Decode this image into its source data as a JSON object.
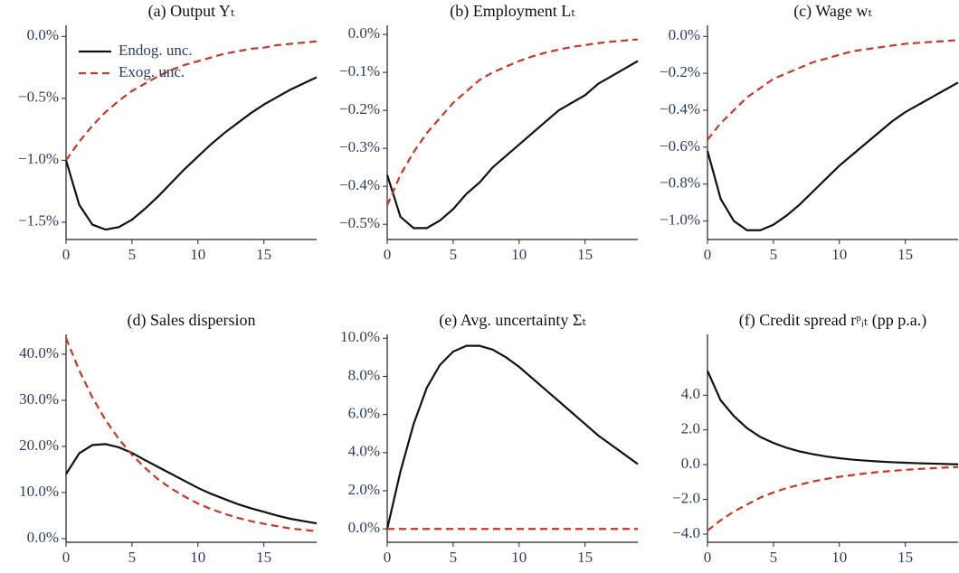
{
  "chart_data": [
    {
      "type": "line",
      "title": "(a) Output Yₜ",
      "legend": "upper left",
      "x": [
        0,
        1,
        2,
        3,
        4,
        5,
        6,
        7,
        8,
        9,
        10,
        11,
        12,
        13,
        14,
        15,
        16,
        17,
        18,
        19
      ],
      "xlim": [
        0,
        19
      ],
      "xticks": [
        0,
        5,
        10,
        15
      ],
      "ylim": [
        -1.64,
        0.09
      ],
      "yticks": [
        {
          "value": 0,
          "label": "0.0%"
        },
        {
          "value": -0.5,
          "label": "−0.5%"
        },
        {
          "value": -1.0,
          "label": "−1.0%"
        },
        {
          "value": -1.5,
          "label": "−1.5%"
        }
      ],
      "series": [
        {
          "name": "Endog. unc.",
          "color": "#111111",
          "dash": "solid",
          "values": [
            -1.0,
            -1.36,
            -1.52,
            -1.56,
            -1.54,
            -1.48,
            -1.39,
            -1.29,
            -1.18,
            -1.07,
            -0.97,
            -0.87,
            -0.78,
            -0.7,
            -0.62,
            -0.55,
            -0.49,
            -0.43,
            -0.38,
            -0.33
          ]
        },
        {
          "name": "Exog. unc.",
          "color": "#c0392b",
          "dash": "dashed",
          "values": [
            -1.0,
            -0.85,
            -0.72,
            -0.61,
            -0.52,
            -0.44,
            -0.38,
            -0.32,
            -0.27,
            -0.23,
            -0.2,
            -0.17,
            -0.14,
            -0.12,
            -0.1,
            -0.09,
            -0.07,
            -0.06,
            -0.05,
            -0.04
          ]
        }
      ]
    },
    {
      "type": "line",
      "title": "(b) Employment Lₜ",
      "x": [
        0,
        1,
        2,
        3,
        4,
        5,
        6,
        7,
        8,
        9,
        10,
        11,
        12,
        13,
        14,
        15,
        16,
        17,
        18,
        19
      ],
      "xlim": [
        0,
        19
      ],
      "xticks": [
        0,
        5,
        10,
        15
      ],
      "ylim": [
        -0.54,
        0.024
      ],
      "yticks": [
        {
          "value": 0,
          "label": "0.0%"
        },
        {
          "value": -0.1,
          "label": "−0.1%"
        },
        {
          "value": -0.2,
          "label": "−0.2%"
        },
        {
          "value": -0.3,
          "label": "−0.3%"
        },
        {
          "value": -0.4,
          "label": "−0.4%"
        },
        {
          "value": -0.5,
          "label": "−0.5%"
        }
      ],
      "series": [
        {
          "color": "#111111",
          "dash": "solid",
          "values": [
            -0.37,
            -0.48,
            -0.51,
            -0.51,
            -0.49,
            -0.46,
            -0.42,
            -0.39,
            -0.35,
            -0.32,
            -0.29,
            -0.26,
            -0.23,
            -0.2,
            -0.18,
            -0.16,
            -0.13,
            -0.11,
            -0.09,
            -0.07
          ]
        },
        {
          "color": "#c0392b",
          "dash": "dashed",
          "values": [
            -0.45,
            -0.37,
            -0.31,
            -0.26,
            -0.22,
            -0.18,
            -0.15,
            -0.12,
            -0.1,
            -0.085,
            -0.07,
            -0.058,
            -0.048,
            -0.04,
            -0.033,
            -0.028,
            -0.023,
            -0.019,
            -0.016,
            -0.013
          ]
        }
      ]
    },
    {
      "type": "line",
      "title": "(c) Wage wₜ",
      "x": [
        0,
        1,
        2,
        3,
        4,
        5,
        6,
        7,
        8,
        9,
        10,
        11,
        12,
        13,
        14,
        15,
        16,
        17,
        18,
        19
      ],
      "xlim": [
        0,
        19
      ],
      "xticks": [
        0,
        5,
        10,
        15
      ],
      "ylim": [
        -1.1,
        0.06
      ],
      "yticks": [
        {
          "value": 0,
          "label": "0.0%"
        },
        {
          "value": -0.2,
          "label": "−0.2%"
        },
        {
          "value": -0.4,
          "label": "−0.4%"
        },
        {
          "value": -0.6,
          "label": "−0.6%"
        },
        {
          "value": -0.8,
          "label": "−0.8%"
        },
        {
          "value": -1.0,
          "label": "−1.0%"
        }
      ],
      "series": [
        {
          "color": "#111111",
          "dash": "solid",
          "values": [
            -0.62,
            -0.88,
            -1.0,
            -1.05,
            -1.05,
            -1.02,
            -0.97,
            -0.91,
            -0.84,
            -0.77,
            -0.7,
            -0.64,
            -0.58,
            -0.52,
            -0.46,
            -0.41,
            -0.37,
            -0.33,
            -0.29,
            -0.25
          ]
        },
        {
          "color": "#c0392b",
          "dash": "dashed",
          "values": [
            -0.56,
            -0.47,
            -0.4,
            -0.33,
            -0.28,
            -0.23,
            -0.2,
            -0.17,
            -0.14,
            -0.12,
            -0.1,
            -0.08,
            -0.07,
            -0.06,
            -0.05,
            -0.04,
            -0.035,
            -0.03,
            -0.025,
            -0.02
          ]
        }
      ]
    },
    {
      "type": "line",
      "title": "(d) Sales dispersion",
      "x": [
        0,
        1,
        2,
        3,
        4,
        5,
        6,
        7,
        8,
        9,
        10,
        11,
        12,
        13,
        14,
        15,
        16,
        17,
        18,
        19
      ],
      "xlim": [
        0,
        19
      ],
      "xticks": [
        0,
        5,
        10,
        15
      ],
      "ylim": [
        -0.8,
        44.3
      ],
      "yticks": [
        {
          "value": 0,
          "label": "0.0%"
        },
        {
          "value": 10,
          "label": "10.0%"
        },
        {
          "value": 20,
          "label": "20.0%"
        },
        {
          "value": 30,
          "label": "30.0%"
        },
        {
          "value": 40,
          "label": "40.0%"
        }
      ],
      "series": [
        {
          "color": "#111111",
          "dash": "solid",
          "values": [
            14,
            18.5,
            20.3,
            20.5,
            19.8,
            18.6,
            17.0,
            15.5,
            14.0,
            12.5,
            11.0,
            9.7,
            8.6,
            7.5,
            6.6,
            5.8,
            5.0,
            4.3,
            3.8,
            3.3
          ]
        },
        {
          "color": "#c0392b",
          "dash": "dashed",
          "values": [
            43.5,
            36.5,
            30.6,
            25.7,
            21.6,
            18.2,
            15.3,
            12.8,
            10.8,
            9.1,
            7.6,
            6.4,
            5.4,
            4.5,
            3.8,
            3.2,
            2.7,
            2.2,
            1.9,
            1.6
          ]
        }
      ]
    },
    {
      "type": "line",
      "title": "(e) Avg. uncertainty Σₜ",
      "x": [
        0,
        1,
        2,
        3,
        4,
        5,
        6,
        7,
        8,
        9,
        10,
        11,
        12,
        13,
        14,
        15,
        16,
        17,
        18,
        19
      ],
      "xlim": [
        0,
        19
      ],
      "xticks": [
        0,
        5,
        10,
        15
      ],
      "ylim": [
        -0.7,
        10.2
      ],
      "yticks": [
        {
          "value": 0,
          "label": "0.0%"
        },
        {
          "value": 2,
          "label": "2.0%"
        },
        {
          "value": 4,
          "label": "4.0%"
        },
        {
          "value": 6,
          "label": "6.0%"
        },
        {
          "value": 8,
          "label": "8.0%"
        },
        {
          "value": 10,
          "label": "10.0%"
        }
      ],
      "series": [
        {
          "color": "#111111",
          "dash": "solid",
          "values": [
            0,
            3.0,
            5.5,
            7.4,
            8.6,
            9.3,
            9.6,
            9.6,
            9.4,
            9.0,
            8.5,
            7.9,
            7.3,
            6.7,
            6.1,
            5.5,
            4.9,
            4.4,
            3.9,
            3.4
          ]
        },
        {
          "color": "#c0392b",
          "dash": "dashed",
          "values": [
            0,
            0,
            0,
            0,
            0,
            0,
            0,
            0,
            0,
            0,
            0,
            0,
            0,
            0,
            0,
            0,
            0,
            0,
            0,
            0
          ]
        }
      ]
    },
    {
      "type": "line",
      "title": "(f) Credit spread rᵖᵢₜ (pp p.a.)",
      "x": [
        0,
        1,
        2,
        3,
        4,
        5,
        6,
        7,
        8,
        9,
        10,
        11,
        12,
        13,
        14,
        15,
        16,
        17,
        18,
        19
      ],
      "xlim": [
        0,
        19
      ],
      "xticks": [
        0,
        5,
        10,
        15
      ],
      "ylim": [
        -4.47,
        7.5
      ],
      "yticks": [
        {
          "value": 4,
          "label": "4.0"
        },
        {
          "value": 2,
          "label": "2.0"
        },
        {
          "value": 0,
          "label": "0.0"
        },
        {
          "value": -2,
          "label": "−2.0"
        },
        {
          "value": -4,
          "label": "−4.0"
        }
      ],
      "series": [
        {
          "color": "#111111",
          "dash": "solid",
          "values": [
            5.4,
            3.7,
            2.8,
            2.1,
            1.6,
            1.25,
            0.97,
            0.76,
            0.6,
            0.47,
            0.37,
            0.29,
            0.23,
            0.18,
            0.14,
            0.11,
            0.08,
            0.06,
            0.04,
            0.02
          ]
        },
        {
          "color": "#c0392b",
          "dash": "dashed",
          "values": [
            -3.8,
            -3.2,
            -2.7,
            -2.3,
            -1.9,
            -1.6,
            -1.35,
            -1.15,
            -0.97,
            -0.82,
            -0.7,
            -0.6,
            -0.5,
            -0.42,
            -0.36,
            -0.3,
            -0.25,
            -0.21,
            -0.17,
            -0.14
          ]
        }
      ]
    }
  ]
}
